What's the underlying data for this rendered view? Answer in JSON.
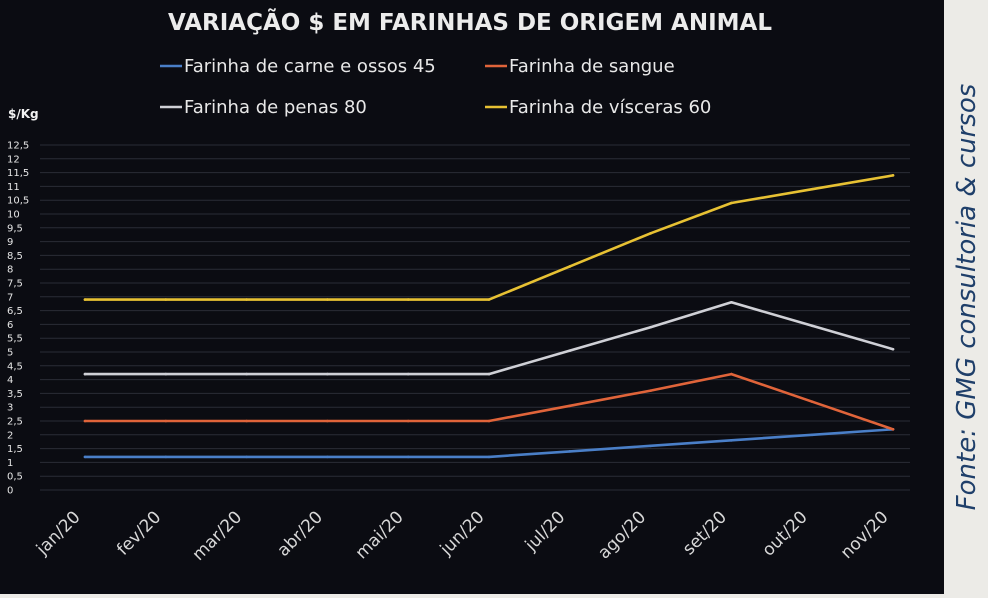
{
  "chart_data": {
    "type": "line",
    "title": "VARIAÇÃO $ EM FARINHAS DE ORIGEM ANIMAL",
    "ylabel": "$/Kg",
    "xlabel": "",
    "categories": [
      "jan/20",
      "fev/20",
      "mar/20",
      "abr/20",
      "mai/20",
      "jun/20",
      "jul/20",
      "ago/20",
      "set/20",
      "out/20",
      "nov/20"
    ],
    "ylim": [
      0,
      12.5
    ],
    "yticks": [
      0,
      0.5,
      1,
      1.5,
      2,
      2.5,
      3,
      3.5,
      4,
      4.5,
      5,
      5.5,
      6,
      6.5,
      7,
      7.5,
      8,
      8.5,
      9,
      9.5,
      10,
      10.5,
      11,
      11.5,
      12,
      12.5
    ],
    "grid": true,
    "legend_position": "top",
    "series": [
      {
        "name": "Farinha de carne e ossos 45",
        "color": "#4a7fc8",
        "values": [
          1.2,
          1.2,
          1.2,
          1.2,
          1.2,
          1.2,
          1.4,
          1.6,
          1.8,
          2.0,
          2.2
        ]
      },
      {
        "name": "Farinha de sangue",
        "color": "#e0643a",
        "values": [
          2.5,
          2.5,
          2.5,
          2.5,
          2.5,
          2.5,
          3.05,
          3.6,
          4.2,
          3.2,
          2.2
        ]
      },
      {
        "name": "Farinha de penas 80",
        "color": "#cfd0d6",
        "values": [
          4.2,
          4.2,
          4.2,
          4.2,
          4.2,
          4.2,
          5.05,
          5.9,
          6.8,
          5.95,
          5.1
        ]
      },
      {
        "name": "Farinha de vísceras 60",
        "color": "#e7c133",
        "values": [
          6.9,
          6.9,
          6.9,
          6.9,
          6.9,
          6.9,
          8.1,
          9.3,
          10.4,
          10.9,
          11.4
        ]
      }
    ]
  },
  "source_note": "Fonte: GMG consultoria & cursos"
}
